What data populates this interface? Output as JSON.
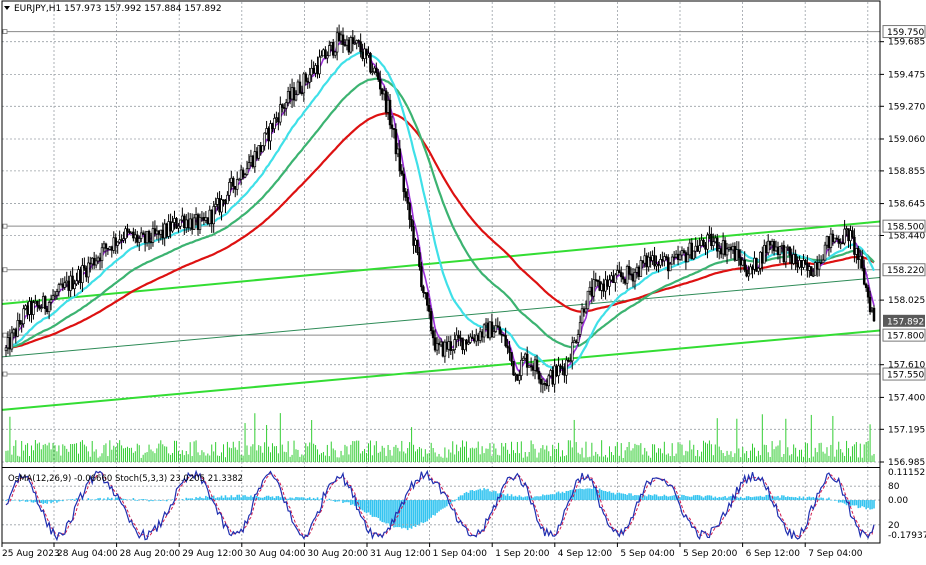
{
  "header": {
    "symbol_line": "EURJPY,H1  157.973 157.992 157.884 157.892",
    "sub_line": "OsMA(12,26,9) -0.06660  Stoch(5,3,3) 23.0205 21.3382"
  },
  "colors": {
    "candle": "#000000",
    "grid": "#9aa0a6",
    "volume": "#32cd32",
    "ma_fast": "#9b30d9",
    "ma_cyan": "#3fe0e8",
    "ma_green": "#3cb371",
    "ma_red": "#dd1111",
    "trend": "#33dd33",
    "osma": "#33c4f0",
    "stoch_main": "#1f2fb0",
    "stoch_signal": "#d11a4d",
    "badge_bg": "#5a5a5a"
  },
  "chart_data": {
    "type": "candlestick",
    "symbol": "EURJPY",
    "timeframe": "H1",
    "ohlc_last": {
      "open": 157.973,
      "high": 157.992,
      "low": 157.884,
      "close": 157.892
    },
    "price_range": [
      156.985,
      159.85
    ],
    "price_ticks": [
      "159.685",
      "159.475",
      "159.270",
      "159.060",
      "158.855",
      "158.645",
      "158.440",
      "158.025",
      "157.610",
      "157.400",
      "157.195",
      "156.985"
    ],
    "level_lines": [
      {
        "value": 159.75,
        "label": "159.750"
      },
      {
        "value": 158.5,
        "label": "158.500"
      },
      {
        "value": 158.22,
        "label": "158.220"
      },
      {
        "value": 157.8,
        "label": "157.800"
      },
      {
        "value": 157.55,
        "label": "157.550"
      }
    ],
    "current_price_label": "157.892",
    "time_labels": [
      "25 Aug 2023",
      "28 Aug 04:00",
      "28 Aug 20:00",
      "29 Aug 12:00",
      "30 Aug 04:00",
      "30 Aug 20:00",
      "31 Aug 12:00",
      "1 Sep 04:00",
      "1 Sep 20:00",
      "4 Sep 12:00",
      "5 Sep 04:00",
      "5 Sep 20:00",
      "6 Sep 12:00",
      "7 Sep 04:00"
    ],
    "price_anchors": [
      [
        0,
        157.7
      ],
      [
        10,
        157.95
      ],
      [
        20,
        158.0
      ],
      [
        30,
        158.1
      ],
      [
        40,
        158.22
      ],
      [
        50,
        158.35
      ],
      [
        60,
        158.45
      ],
      [
        70,
        158.4
      ],
      [
        80,
        158.45
      ],
      [
        90,
        158.55
      ],
      [
        100,
        158.5
      ],
      [
        110,
        158.65
      ],
      [
        120,
        158.85
      ],
      [
        130,
        159.0
      ],
      [
        140,
        159.25
      ],
      [
        150,
        159.4
      ],
      [
        160,
        159.55
      ],
      [
        170,
        159.7
      ],
      [
        180,
        159.65
      ],
      [
        190,
        159.45
      ],
      [
        195,
        159.25
      ],
      [
        200,
        158.95
      ],
      [
        205,
        158.6
      ],
      [
        210,
        158.3
      ],
      [
        215,
        157.95
      ],
      [
        220,
        157.7
      ],
      [
        230,
        157.75
      ],
      [
        240,
        157.8
      ],
      [
        250,
        157.85
      ],
      [
        255,
        157.75
      ],
      [
        260,
        157.55
      ],
      [
        265,
        157.65
      ],
      [
        270,
        157.6
      ],
      [
        275,
        157.5
      ],
      [
        280,
        157.55
      ],
      [
        285,
        157.6
      ],
      [
        290,
        157.75
      ],
      [
        295,
        158.0
      ],
      [
        300,
        158.1
      ],
      [
        310,
        158.15
      ],
      [
        320,
        158.2
      ],
      [
        330,
        158.3
      ],
      [
        340,
        158.25
      ],
      [
        350,
        158.35
      ],
      [
        360,
        158.4
      ],
      [
        370,
        158.35
      ],
      [
        380,
        158.2
      ],
      [
        390,
        158.4
      ],
      [
        400,
        158.3
      ],
      [
        410,
        158.2
      ],
      [
        420,
        158.4
      ],
      [
        430,
        158.45
      ],
      [
        435,
        158.3
      ],
      [
        440,
        158.05
      ],
      [
        443,
        157.892
      ]
    ],
    "osma_range": [
      -0.3,
      0.22
    ],
    "osma_anchors": [
      [
        0,
        0.0
      ],
      [
        20,
        -0.02
      ],
      [
        40,
        0.01
      ],
      [
        60,
        0.01
      ],
      [
        80,
        -0.01
      ],
      [
        100,
        0.02
      ],
      [
        120,
        0.03
      ],
      [
        140,
        0.02
      ],
      [
        160,
        0.01
      ],
      [
        175,
        -0.02
      ],
      [
        185,
        -0.1
      ],
      [
        195,
        -0.18
      ],
      [
        205,
        -0.22
      ],
      [
        215,
        -0.15
      ],
      [
        225,
        -0.05
      ],
      [
        235,
        0.06
      ],
      [
        245,
        0.08
      ],
      [
        255,
        0.04
      ],
      [
        265,
        0.02
      ],
      [
        275,
        0.04
      ],
      [
        290,
        0.07
      ],
      [
        300,
        0.09
      ],
      [
        310,
        0.05
      ],
      [
        320,
        0.04
      ],
      [
        335,
        0.03
      ],
      [
        350,
        0.03
      ],
      [
        370,
        0.02
      ],
      [
        390,
        0.03
      ],
      [
        405,
        0.02
      ],
      [
        420,
        0.01
      ],
      [
        430,
        -0.04
      ],
      [
        443,
        -0.0666
      ]
    ],
    "osma_ticks": [
      "0.11152",
      "0.00",
      "-0.17937"
    ],
    "stoch_levels": [
      "80",
      "20"
    ],
    "stoch_last": {
      "main": 23.0205,
      "signal": 21.3382
    }
  }
}
